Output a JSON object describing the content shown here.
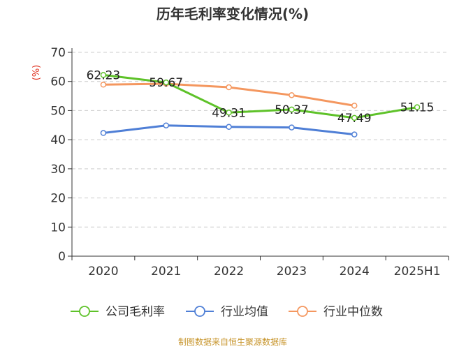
{
  "chart_data": {
    "type": "line",
    "title": "历年毛利率变化情况(%)",
    "ylabel": "(%)",
    "xlabel": "",
    "ylim": [
      0,
      70
    ],
    "yticks": [
      0,
      10,
      20,
      30,
      40,
      50,
      60,
      70
    ],
    "categories": [
      "2020",
      "2021",
      "2022",
      "2023",
      "2024",
      "2025H1"
    ],
    "grid": true,
    "legend_position": "bottom",
    "series": [
      {
        "name": "公司毛利率",
        "color": "#5ec229",
        "values": [
          62.23,
          59.67,
          49.31,
          50.37,
          47.49,
          51.15
        ],
        "labels": [
          "62.23",
          "59.67",
          "49.31",
          "50.37",
          "47.49",
          "51.15"
        ]
      },
      {
        "name": "行业均值",
        "color": "#4f7fd6",
        "values": [
          42.3,
          44.9,
          44.4,
          44.2,
          41.8,
          null
        ]
      },
      {
        "name": "行业中位数",
        "color": "#f4975f",
        "values": [
          58.9,
          59.2,
          58.0,
          55.3,
          51.7,
          null
        ]
      }
    ],
    "source": "制图数据来自恒生聚源数据库"
  }
}
